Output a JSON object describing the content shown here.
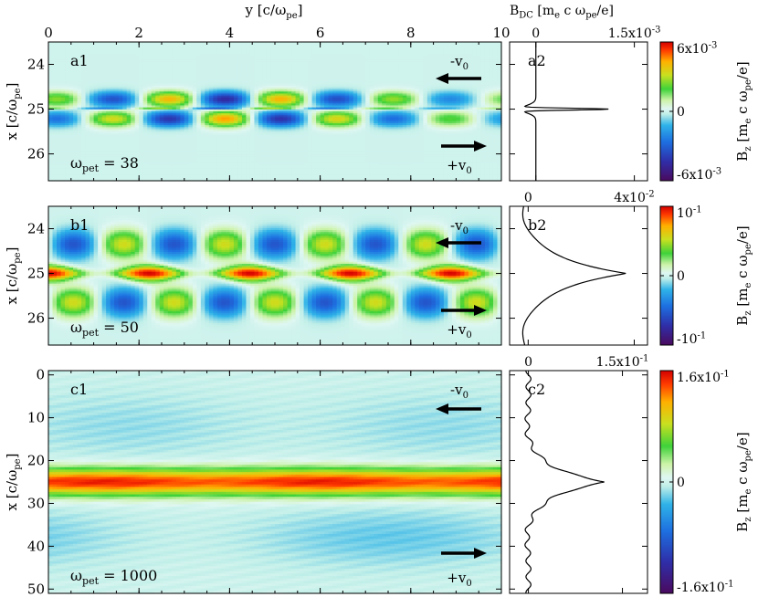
{
  "figure": {
    "top_xlabel": "y [c/ω_pe]",
    "top_dc_label": "B_DC [m_e c ω_pe/e]",
    "colorbar_label": "B_z [m_e c ω_pe/e]",
    "colormap": [
      "#4a0a5e",
      "#2f2ea8",
      "#1d6fe0",
      "#2fb3e8",
      "#bfeee8",
      "#dff7f2",
      "#cdf3a8",
      "#3fd23a",
      "#c8e020",
      "#ffb000",
      "#ff3a00",
      "#d40000"
    ]
  },
  "chart_data": [
    {
      "id": "a1",
      "type": "heatmap",
      "panel_label": "a1",
      "time_label": "ω_pe t = 38",
      "ylabel": "x [c/ω_pe]",
      "x": [
        0,
        10
      ],
      "xticks": [
        0,
        2,
        4,
        6,
        8,
        10
      ],
      "ylim": [
        26.6,
        23.5
      ],
      "yticks": [
        24,
        25,
        26
      ],
      "flow_labels": [
        "-v_0",
        "+v_0"
      ],
      "field": {
        "mode": "early",
        "modes": 8,
        "amplitude": 0.006,
        "width": 0.25,
        "center": 25
      }
    },
    {
      "id": "a2",
      "type": "line",
      "panel_label": "a2",
      "xlim": [
        -0.0004,
        0.0017
      ],
      "xticks": [
        0,
        0.0015
      ],
      "xticklabels": [
        "0",
        "1.5x10^-3"
      ],
      "ylim": [
        26.6,
        23.5
      ],
      "profile": {
        "center": 25,
        "peak": 0.00135,
        "width": 0.02,
        "offset": -3e-05
      }
    },
    {
      "id": "a3",
      "type": "heatmap",
      "panel_label": "colorbar-a",
      "clim": [
        -0.006,
        0.006
      ],
      "ticks": [
        -0.006,
        0,
        0.006
      ],
      "ticklabels": [
        "-6x10^-3",
        "0",
        "6x10^-3"
      ]
    },
    {
      "id": "b1",
      "type": "heatmap",
      "panel_label": "b1",
      "time_label": "ω_pe t = 50",
      "ylabel": "x [c/ω_pe]",
      "x": [
        0,
        10
      ],
      "xticks": [
        0,
        2,
        4,
        6,
        8,
        10
      ],
      "ylim": [
        26.6,
        23.5
      ],
      "yticks": [
        24,
        25,
        26
      ],
      "flow_labels": [
        "-v_0",
        "+v_0"
      ],
      "field": {
        "mode": "mid",
        "modes": 4.5,
        "amplitude": 0.1,
        "width": 0.6,
        "center": 25
      }
    },
    {
      "id": "b2",
      "type": "line",
      "panel_label": "b2",
      "xlim": [
        -0.007,
        0.045
      ],
      "xticks": [
        0,
        0.04
      ],
      "xticklabels": [
        "0",
        "4x10^-2"
      ],
      "ylim": [
        26.6,
        23.5
      ],
      "profile": {
        "center": 25,
        "peak": 0.037,
        "width": 0.35,
        "offset": -0.003
      }
    },
    {
      "id": "b3",
      "type": "heatmap",
      "panel_label": "colorbar-b",
      "clim": [
        -0.1,
        0.1
      ],
      "ticks": [
        -0.1,
        0,
        0.1
      ],
      "ticklabels": [
        "-10^-1",
        "0",
        "10^-1"
      ]
    },
    {
      "id": "c1",
      "type": "heatmap",
      "panel_label": "c1",
      "time_label": "ω_pe t = 1000",
      "ylabel": "x [c/ω_pe]",
      "x": [
        0,
        10
      ],
      "xticks": [
        0,
        2,
        4,
        6,
        8,
        10
      ],
      "ylim": [
        51,
        -1
      ],
      "yticks": [
        0,
        10,
        20,
        30,
        40,
        50
      ],
      "flow_labels": [
        "-v_0",
        "+v_0"
      ],
      "field": {
        "mode": "late",
        "amplitude": 0.16,
        "width": 3.5,
        "center": 25
      }
    },
    {
      "id": "c2",
      "type": "line",
      "panel_label": "c2",
      "xlim": [
        -0.03,
        0.19
      ],
      "xticks": [
        0,
        0.15
      ],
      "xticklabels": [
        "0",
        "1.5x10^-1"
      ],
      "ylim": [
        51,
        -1
      ],
      "profile": {
        "center": 25,
        "peak": 0.125,
        "width": 3.2,
        "offset": -0.005
      }
    },
    {
      "id": "c3",
      "type": "heatmap",
      "panel_label": "colorbar-c",
      "clim": [
        -0.16,
        0.16
      ],
      "ticks": [
        -0.16,
        0,
        0.16
      ],
      "ticklabels": [
        "-1.6x10^-1",
        "0",
        "1.6x10^-1"
      ]
    }
  ]
}
